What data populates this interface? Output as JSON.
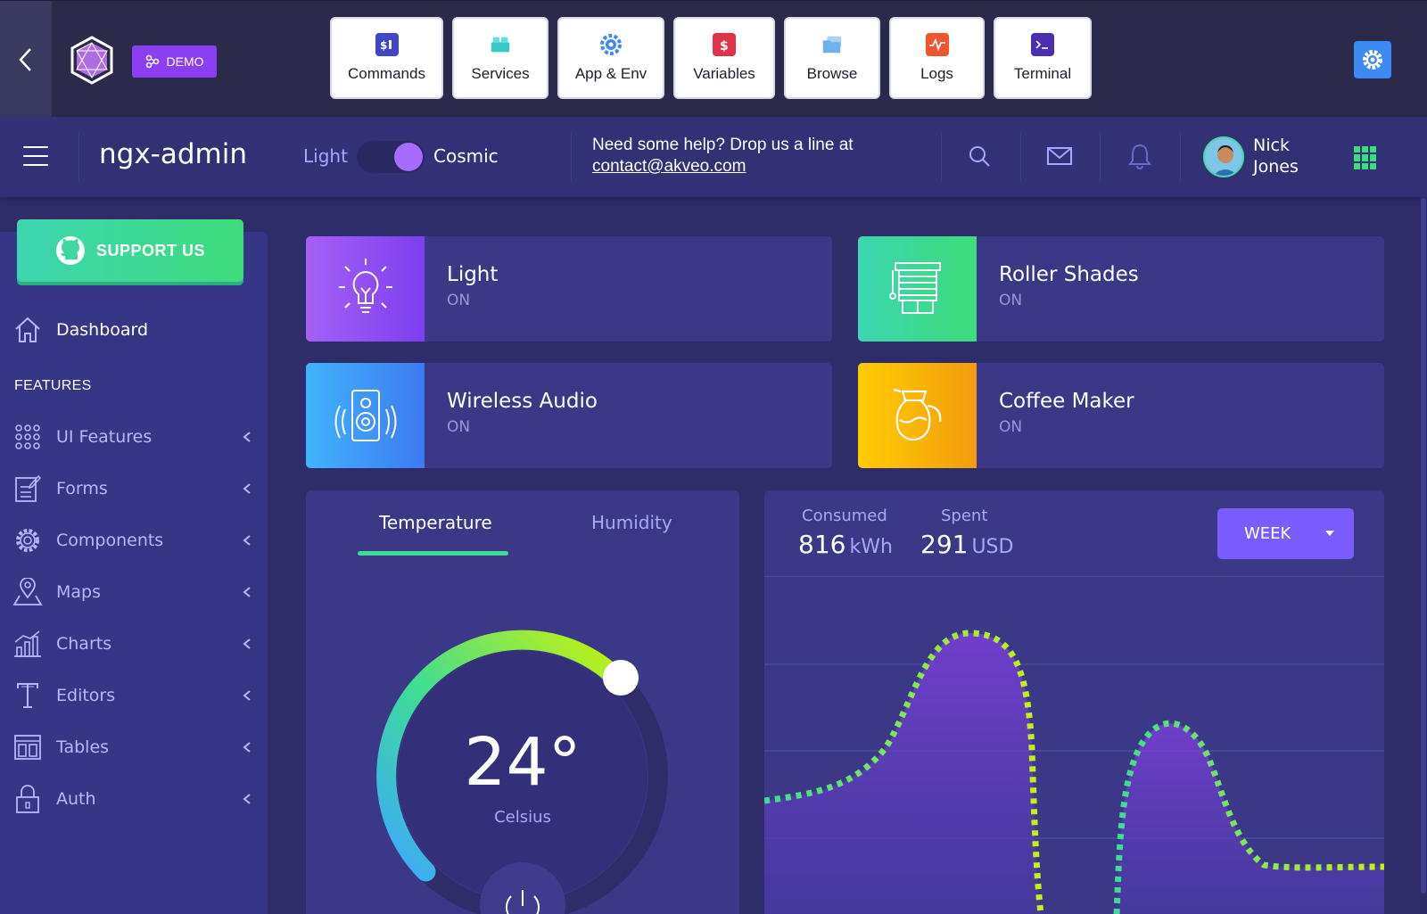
{
  "toolbar": {
    "demo_label": "DEMO",
    "buttons": [
      {
        "label": "Commands",
        "icon": "terminal-dollar-icon",
        "color": "#3f46c9"
      },
      {
        "label": "Services",
        "icon": "cubes-icon",
        "color": "#39c9c2"
      },
      {
        "label": "App & Env",
        "icon": "gear-app-icon",
        "color": "#3d8bf2"
      },
      {
        "label": "Variables",
        "icon": "dollar-doc-icon",
        "color": "#e0324a"
      },
      {
        "label": "Browse",
        "icon": "folders-icon",
        "color": "#6fb0f0"
      },
      {
        "label": "Logs",
        "icon": "pulse-icon",
        "color": "#f2542d"
      },
      {
        "label": "Terminal",
        "icon": "terminal-prompt-icon",
        "color": "#4c2fb0"
      }
    ]
  },
  "header": {
    "brand": "ngx-admin",
    "theme_light": "Light",
    "theme_cosmic": "Cosmic",
    "help_text": "Need some help? Drop us a line at",
    "help_email": "contact@akveo.com",
    "user_first": "Nick",
    "user_last": "Jones"
  },
  "sidebar": {
    "support_label": "SUPPORT US",
    "dashboard": "Dashboard",
    "section": "FEATURES",
    "items": [
      {
        "label": "UI Features",
        "icon": "grid-dots-icon"
      },
      {
        "label": "Forms",
        "icon": "edit-form-icon"
      },
      {
        "label": "Components",
        "icon": "gear-icon"
      },
      {
        "label": "Maps",
        "icon": "map-pin-icon"
      },
      {
        "label": "Charts",
        "icon": "bar-chart-icon"
      },
      {
        "label": "Editors",
        "icon": "text-icon"
      },
      {
        "label": "Tables",
        "icon": "table-icon"
      },
      {
        "label": "Auth",
        "icon": "lock-icon"
      }
    ]
  },
  "devices": [
    {
      "title": "Light",
      "status": "ON",
      "gradient": [
        "#a560f5",
        "#7c3ff0"
      ]
    },
    {
      "title": "Roller Shades",
      "status": "ON",
      "gradient": [
        "#3cd6b0",
        "#3ddc7a"
      ]
    },
    {
      "title": "Wireless Audio",
      "status": "ON",
      "gradient": [
        "#40b4fb",
        "#3d7af2"
      ]
    },
    {
      "title": "Coffee Maker",
      "status": "ON",
      "gradient": [
        "#ffcc00",
        "#f29c10"
      ]
    }
  ],
  "temperature": {
    "tabs": [
      "Temperature",
      "Humidity"
    ],
    "value": "24°",
    "unit": "Celsius"
  },
  "electricity": {
    "consumed_label": "Consumed",
    "consumed_value": "816",
    "consumed_unit": "kWh",
    "spent_label": "Spent",
    "spent_value": "291",
    "spent_unit": "USD",
    "period": "WEEK"
  }
}
